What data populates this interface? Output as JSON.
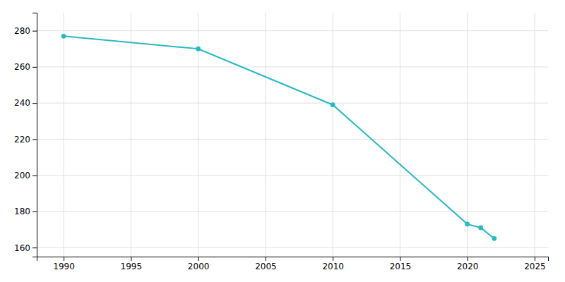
{
  "chart_data": {
    "type": "line",
    "x": [
      1990,
      2000,
      2010,
      2020,
      2021,
      2022
    ],
    "values": [
      277,
      270,
      239,
      173,
      171,
      165
    ],
    "color": "#29b8c4",
    "marker": "circle",
    "xlim": [
      1988,
      2026
    ],
    "ylim": [
      155,
      290
    ],
    "xticks": [
      1990,
      1995,
      2000,
      2005,
      2010,
      2015,
      2020,
      2025
    ],
    "yticks": [
      160,
      180,
      200,
      220,
      240,
      260,
      280
    ],
    "grid": true
  }
}
